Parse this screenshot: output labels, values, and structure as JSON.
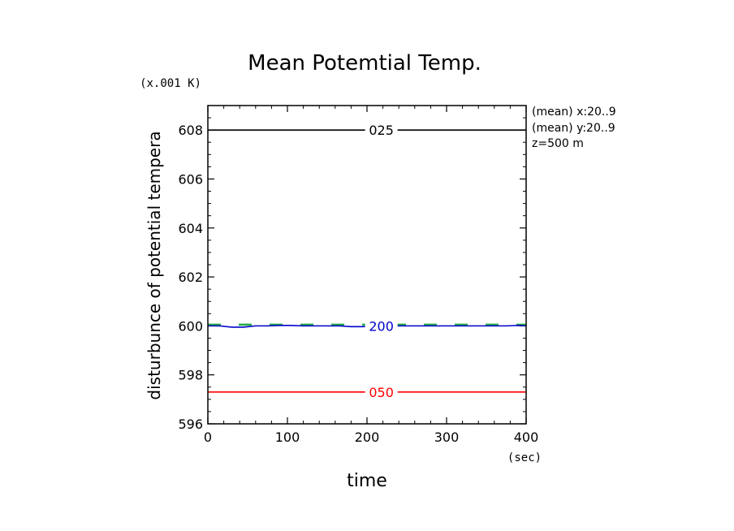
{
  "chart_data": {
    "type": "line",
    "title": "Mean Potemtial Temp.",
    "xlabel": "time",
    "ylabel": "disturbunce of potential tempera",
    "y_unit": "(x.001 K)",
    "x_unit": "(sec)",
    "xlim": [
      0,
      400
    ],
    "ylim": [
      596,
      609
    ],
    "x_ticks": [
      0,
      100,
      200,
      300,
      400
    ],
    "x_tick_labels": [
      "0",
      "100",
      "200",
      "300",
      "400"
    ],
    "y_ticks": [
      596,
      598,
      600,
      602,
      604,
      606,
      608
    ],
    "y_tick_labels": [
      "596",
      "598",
      "600",
      "602",
      "604",
      "606",
      "608"
    ],
    "annotations": [
      "(mean) x:20..9",
      "(mean) y:20..9",
      "z=500 m"
    ],
    "series": [
      {
        "name": "025",
        "color": "#000000",
        "dash": "solid",
        "x": [
          0,
          400
        ],
        "y": [
          608.0,
          608.0
        ]
      },
      {
        "name": "200",
        "color": "#0000cc",
        "dash": "solid",
        "x": [
          0,
          15,
          30,
          45,
          60,
          75,
          90,
          105,
          120,
          135,
          150,
          165,
          180,
          195,
          210,
          225,
          240,
          255,
          270,
          285,
          300,
          315,
          330,
          345,
          360,
          375,
          390,
          400
        ],
        "y": [
          600.0,
          600.0,
          599.95,
          599.95,
          600.0,
          600.0,
          600.02,
          600.02,
          600.0,
          600.0,
          600.0,
          600.0,
          599.97,
          599.97,
          600.0,
          600.0,
          600.0,
          600.0,
          600.0,
          600.0,
          600.0,
          600.0,
          600.0,
          600.0,
          600.0,
          600.0,
          600.02,
          600.0
        ]
      },
      {
        "name": "",
        "color": "#22aa44",
        "dash": "dashed",
        "x": [
          0,
          400
        ],
        "y": [
          600.05,
          600.05
        ]
      },
      {
        "name": "050",
        "color": "#ff0000",
        "dash": "solid",
        "x": [
          0,
          400
        ],
        "y": [
          597.3,
          597.3
        ]
      }
    ]
  }
}
